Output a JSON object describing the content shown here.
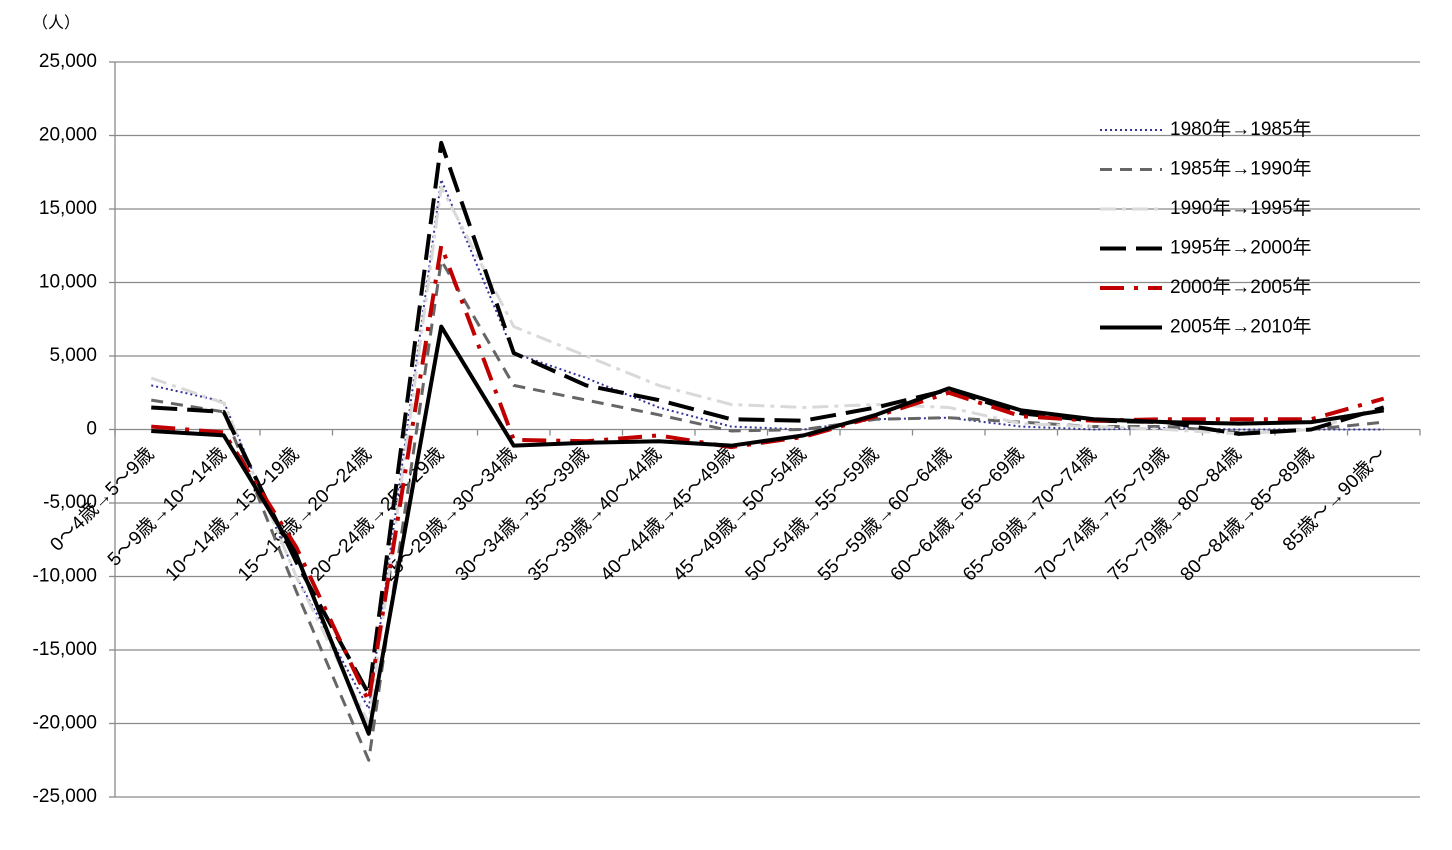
{
  "chart_data": {
    "type": "line",
    "y_unit": "（人）",
    "categories": [
      "0～4歳→5～9歳",
      "5～9歳→10～14歳",
      "10～14歳→15～19歳",
      "15～19歳→20～24歳",
      "20～24歳→25～29歳",
      "25～29歳→30～34歳",
      "30～34歳→35～39歳",
      "35～39歳→40～44歳",
      "40～44歳→45～49歳",
      "45～49歳→50～54歳",
      "50～54歳→55～59歳",
      "55～59歳→60～64歳",
      "60～64歳→65～69歳",
      "65～69歳→70～74歳",
      "70～74歳→75～79歳",
      "75～79歳→80～84歳",
      "80～84歳→85～89歳",
      "85歳～→90歳～"
    ],
    "series": [
      {
        "name": "1980年→1985年",
        "color": "#333399",
        "values": [
          3000,
          1900,
          -10000,
          -19000,
          17000,
          5200,
          3500,
          1500,
          200,
          0,
          700,
          800,
          200,
          0,
          100,
          0,
          0,
          0
        ]
      },
      {
        "name": "1985年→1990年",
        "color": "#666666",
        "values": [
          2000,
          1200,
          -11000,
          -22500,
          11500,
          3000,
          2000,
          1000,
          -100,
          0,
          700,
          800,
          500,
          200,
          200,
          -200,
          0,
          500
        ]
      },
      {
        "name": "1990年→1995年",
        "color": "#d9d9d9",
        "values": [
          3500,
          1800,
          -10000,
          -20000,
          16500,
          7000,
          5000,
          3000,
          1700,
          1500,
          1700,
          1500,
          400,
          200,
          0,
          -300,
          0,
          1500
        ]
      },
      {
        "name": "1995年→2000年",
        "color": "#000000",
        "values": [
          1500,
          1200,
          -9000,
          -18000,
          19500,
          5200,
          3000,
          2000,
          700,
          600,
          1500,
          2700,
          1100,
          600,
          500,
          -300,
          0,
          1500
        ]
      },
      {
        "name": "2000年→2005年",
        "color": "#c00000",
        "values": [
          200,
          -200,
          -8000,
          -18500,
          12500,
          -700,
          -800,
          -400,
          -1200,
          -500,
          900,
          2500,
          900,
          600,
          700,
          700,
          700,
          2100
        ]
      },
      {
        "name": "2005年→2010年",
        "color": "#000000",
        "values": [
          -100,
          -400,
          -8500,
          -20700,
          7000,
          -1100,
          -900,
          -800,
          -1100,
          -400,
          1000,
          2800,
          1300,
          700,
          500,
          400,
          500,
          1300
        ]
      }
    ],
    "ylim": [
      -25000,
      25000
    ],
    "yticks": [
      {
        "value": -25000,
        "label": "-25,000"
      },
      {
        "value": -20000,
        "label": "-20,000"
      },
      {
        "value": -15000,
        "label": "-15,000"
      },
      {
        "value": -10000,
        "label": "-10,000"
      },
      {
        "value": -5000,
        "label": "-5,000"
      },
      0,
      {
        "value": 5000,
        "label": "5,000"
      },
      {
        "value": 10000,
        "label": "10,000"
      },
      {
        "value": 15000,
        "label": "15,000"
      },
      {
        "value": 20000,
        "label": "20,000"
      },
      {
        "value": 25000,
        "label": "25,000"
      }
    ],
    "grid": true
  }
}
